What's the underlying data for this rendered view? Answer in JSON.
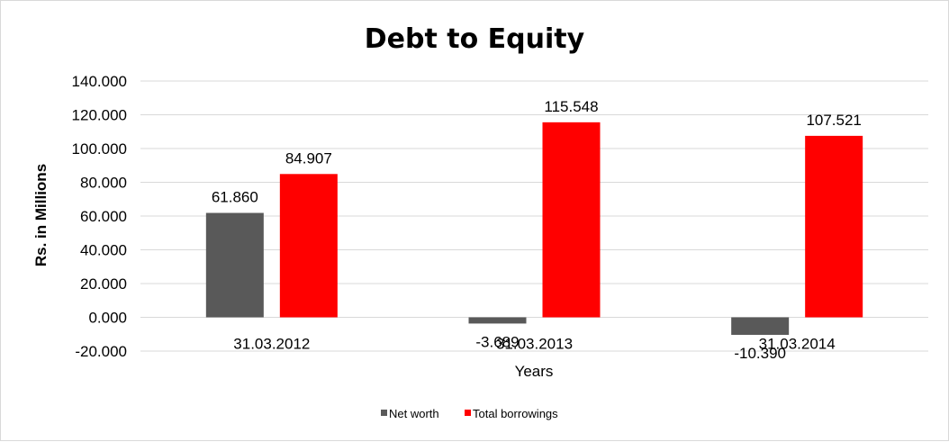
{
  "chart_data": {
    "type": "bar",
    "title": "Debt to Equity",
    "xlabel": "Years",
    "ylabel": "Rs. in Millions",
    "categories": [
      "31.03.2012",
      "31.03.2013",
      "31.03.2014"
    ],
    "series": [
      {
        "name": "Net worth",
        "values": [
          61.86,
          -3.689,
          -10.39
        ],
        "labels": [
          "61.860",
          "-3.689",
          "-10.390"
        ],
        "color": "#595959"
      },
      {
        "name": "Total borrowings",
        "values": [
          84.907,
          115.548,
          107.521
        ],
        "labels": [
          "84.907",
          "115.548",
          "107.521"
        ],
        "color": "#ff0000"
      }
    ],
    "ylim": [
      -20,
      140
    ],
    "yticks": [
      140,
      120,
      100,
      80,
      60,
      40,
      20,
      0,
      -20
    ],
    "ytick_labels": [
      "140.000",
      "120.000",
      "100.000",
      "80.000",
      "60.000",
      "40.000",
      "20.000",
      "0.000",
      "-20.000"
    ],
    "grid": true,
    "gridline_color": "#d9d9d9",
    "legend_position": "bottom"
  }
}
